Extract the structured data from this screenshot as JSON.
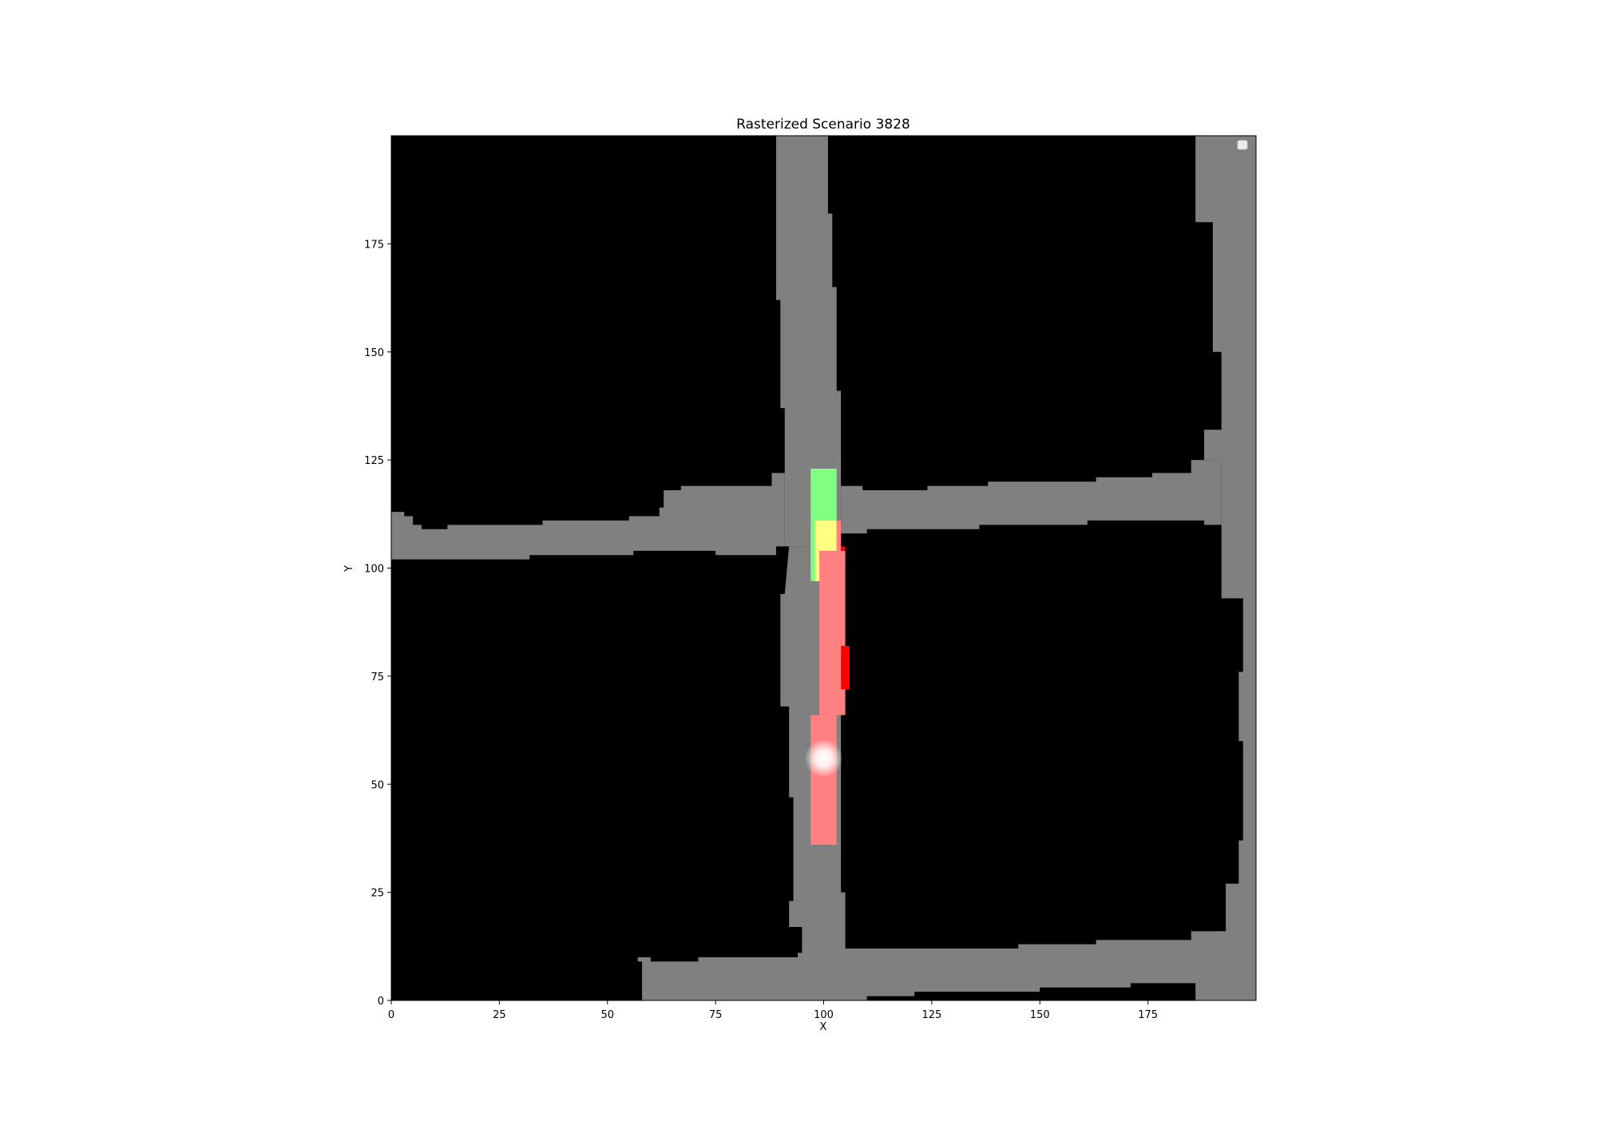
{
  "chart_data": {
    "type": "heatmap",
    "title": "Rasterized Scenario 3828",
    "xlabel": "X",
    "ylabel": "Y",
    "xlim": [
      0,
      200
    ],
    "ylim": [
      0,
      200
    ],
    "xticks": [
      0,
      25,
      50,
      75,
      100,
      125,
      150,
      175
    ],
    "yticks": [
      0,
      25,
      50,
      75,
      100,
      125,
      150,
      175
    ],
    "legend": {
      "placement": "top-right",
      "entries": []
    },
    "grid": false,
    "colors": {
      "background": "#000000",
      "road": "#808080",
      "goal_region": "#80ff80",
      "ego_vehicle": "#ffff80",
      "other_vehicles": "#ff8080",
      "obstacle_marker": "#ff0000",
      "highlight_point": "#ffffff"
    },
    "road_polygons": [
      {
        "name": "north-vertical",
        "points": [
          [
            89,
            200
          ],
          [
            101,
            200
          ],
          [
            101,
            182
          ],
          [
            102,
            182
          ],
          [
            102,
            165
          ],
          [
            103,
            165
          ],
          [
            103,
            141
          ],
          [
            104,
            141
          ],
          [
            104,
            105
          ],
          [
            91,
            105
          ],
          [
            91,
            137
          ],
          [
            90,
            137
          ],
          [
            90,
            162
          ],
          [
            89,
            162
          ]
        ]
      },
      {
        "name": "south-vertical",
        "points": [
          [
            92,
            105
          ],
          [
            104,
            105
          ],
          [
            104,
            25
          ],
          [
            105,
            25
          ],
          [
            105,
            0
          ],
          [
            95,
            0
          ],
          [
            95,
            17
          ],
          [
            92,
            17
          ],
          [
            92,
            23
          ],
          [
            93,
            23
          ],
          [
            93,
            47
          ],
          [
            92,
            47
          ],
          [
            92,
            68
          ],
          [
            90,
            68
          ],
          [
            90,
            94
          ],
          [
            91,
            94
          ]
        ]
      },
      {
        "name": "west-horizontal",
        "points": [
          [
            0,
            113
          ],
          [
            3,
            113
          ],
          [
            3,
            112
          ],
          [
            5,
            112
          ],
          [
            5,
            110
          ],
          [
            7,
            110
          ],
          [
            7,
            109
          ],
          [
            13,
            109
          ],
          [
            13,
            110
          ],
          [
            35,
            110
          ],
          [
            35,
            111
          ],
          [
            55,
            111
          ],
          [
            55,
            112
          ],
          [
            62,
            112
          ],
          [
            62,
            114
          ],
          [
            63,
            114
          ],
          [
            63,
            118
          ],
          [
            67,
            118
          ],
          [
            67,
            119
          ],
          [
            88,
            119
          ],
          [
            88,
            122
          ],
          [
            91,
            122
          ],
          [
            91,
            105
          ],
          [
            89,
            105
          ],
          [
            89,
            103
          ],
          [
            75,
            103
          ],
          [
            75,
            104
          ],
          [
            56,
            104
          ],
          [
            56,
            103
          ],
          [
            32,
            103
          ],
          [
            32,
            102
          ],
          [
            0,
            102
          ]
        ]
      },
      {
        "name": "east-horizontal",
        "points": [
          [
            104,
            119
          ],
          [
            109,
            119
          ],
          [
            109,
            118
          ],
          [
            124,
            118
          ],
          [
            124,
            119
          ],
          [
            138,
            119
          ],
          [
            138,
            120
          ],
          [
            163,
            120
          ],
          [
            163,
            121
          ],
          [
            176,
            121
          ],
          [
            176,
            122
          ],
          [
            185,
            122
          ],
          [
            185,
            125
          ],
          [
            192,
            125
          ],
          [
            192,
            110
          ],
          [
            188,
            110
          ],
          [
            188,
            111
          ],
          [
            161,
            111
          ],
          [
            161,
            110
          ],
          [
            136,
            110
          ],
          [
            136,
            109
          ],
          [
            110,
            109
          ],
          [
            110,
            108
          ],
          [
            104,
            108
          ]
        ]
      },
      {
        "name": "east-vertical",
        "points": [
          [
            186,
            200
          ],
          [
            200,
            200
          ],
          [
            200,
            0
          ],
          [
            186,
            0
          ],
          [
            186,
            13
          ],
          [
            190,
            13
          ],
          [
            190,
            16
          ],
          [
            193,
            16
          ],
          [
            193,
            27
          ],
          [
            196,
            27
          ],
          [
            196,
            37
          ],
          [
            197,
            37
          ],
          [
            197,
            60
          ],
          [
            196,
            60
          ],
          [
            196,
            76
          ],
          [
            197,
            76
          ],
          [
            197,
            93
          ],
          [
            192,
            93
          ],
          [
            192,
            110
          ],
          [
            192,
            125
          ],
          [
            188,
            125
          ],
          [
            188,
            132
          ],
          [
            192,
            132
          ],
          [
            192,
            150
          ],
          [
            190,
            150
          ],
          [
            190,
            180
          ],
          [
            186,
            180
          ]
        ]
      },
      {
        "name": "south-horizontal",
        "points": [
          [
            57,
            10
          ],
          [
            60,
            10
          ],
          [
            60,
            9
          ],
          [
            71,
            9
          ],
          [
            71,
            10
          ],
          [
            94,
            10
          ],
          [
            94,
            11
          ],
          [
            100,
            11
          ],
          [
            100,
            12
          ],
          [
            145,
            12
          ],
          [
            145,
            13
          ],
          [
            163,
            13
          ],
          [
            163,
            14
          ],
          [
            185,
            14
          ],
          [
            185,
            16
          ],
          [
            200,
            16
          ],
          [
            200,
            4
          ],
          [
            171,
            4
          ],
          [
            171,
            3
          ],
          [
            150,
            3
          ],
          [
            150,
            2
          ],
          [
            121,
            2
          ],
          [
            121,
            1
          ],
          [
            110,
            1
          ],
          [
            110,
            0
          ],
          [
            58,
            0
          ],
          [
            58,
            9
          ],
          [
            57,
            9
          ]
        ]
      }
    ],
    "goal_region": {
      "x": [
        97,
        103
      ],
      "y": [
        97,
        123
      ]
    },
    "vehicles": [
      {
        "name": "ego",
        "color": "ego_vehicle",
        "x": [
          98,
          103
        ],
        "y": [
          97,
          111
        ]
      },
      {
        "name": "vehicle-1",
        "color": "other_vehicles",
        "x": [
          103,
          104
        ],
        "y": [
          97,
          111
        ]
      },
      {
        "name": "vehicle-2",
        "color": "other_vehicles",
        "x": [
          99,
          105
        ],
        "y": [
          66,
          104
        ]
      },
      {
        "name": "vehicle-3",
        "color": "other_vehicles",
        "x": [
          97,
          103
        ],
        "y": [
          36,
          66
        ]
      }
    ],
    "obstacle_markers": [
      {
        "x": [
          104,
          106
        ],
        "y": [
          72,
          82
        ]
      },
      {
        "x": [
          104,
          105
        ],
        "y": [
          104,
          105
        ]
      }
    ],
    "highlight_point": {
      "x": 100,
      "y": 56
    }
  }
}
